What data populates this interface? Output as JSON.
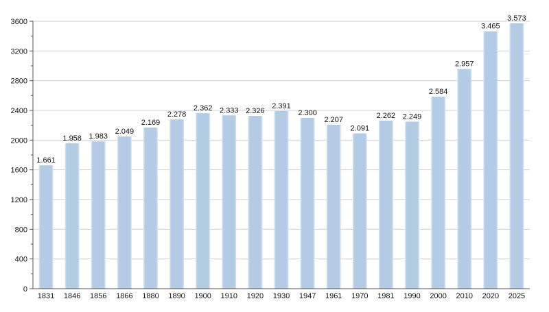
{
  "chart_data": {
    "type": "bar",
    "title": "",
    "xlabel": "",
    "ylabel": "",
    "categories": [
      "1831",
      "1846",
      "1856",
      "1866",
      "1880",
      "1890",
      "1900",
      "1910",
      "1920",
      "1930",
      "1947",
      "1961",
      "1970",
      "1981",
      "1990",
      "2000",
      "2010",
      "2020",
      "2025"
    ],
    "values": [
      1661,
      1958,
      1983,
      2049,
      2169,
      2278,
      2362,
      2333,
      2326,
      2391,
      2300,
      2207,
      2091,
      2262,
      2249,
      2584,
      2957,
      3465,
      3573
    ],
    "value_labels": [
      "1.661",
      "1.958",
      "1.983",
      "2.049",
      "2.169",
      "2.278",
      "2.362",
      "2.333",
      "2.326",
      "2.391",
      "2.300",
      "2.207",
      "2.091",
      "2.262",
      "2.249",
      "2.584",
      "2.957",
      "3.465",
      "3.573"
    ],
    "ylim": [
      0,
      3600
    ],
    "y_ticks": [
      0,
      400,
      800,
      1200,
      1600,
      2000,
      2400,
      2800,
      3200,
      3600
    ],
    "y_minor_step": 200,
    "grid": true,
    "legend": "none",
    "bar_color": "#b7cee6",
    "grid_color": "#cfcfcf",
    "axis_color": "#555555"
  }
}
